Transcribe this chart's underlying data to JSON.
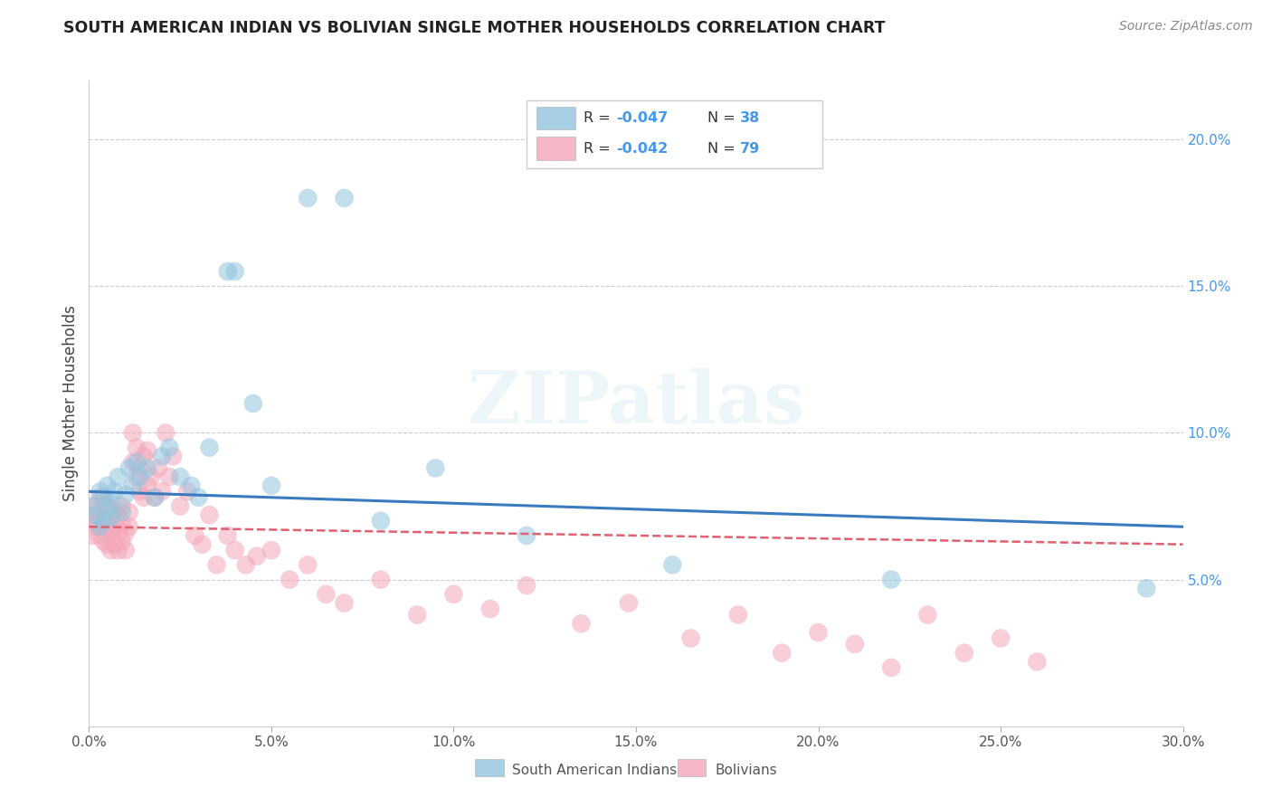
{
  "title": "SOUTH AMERICAN INDIAN VS BOLIVIAN SINGLE MOTHER HOUSEHOLDS CORRELATION CHART",
  "source": "Source: ZipAtlas.com",
  "ylabel": "Single Mother Households",
  "xlim": [
    0.0,
    0.3
  ],
  "ylim": [
    0.0,
    0.22
  ],
  "xticks": [
    0.0,
    0.05,
    0.1,
    0.15,
    0.2,
    0.25,
    0.3
  ],
  "yticks": [
    0.05,
    0.1,
    0.15,
    0.2
  ],
  "xticklabels": [
    "0.0%",
    "5.0%",
    "10.0%",
    "15.0%",
    "20.0%",
    "25.0%",
    "30.0%"
  ],
  "yticklabels": [
    "5.0%",
    "10.0%",
    "15.0%",
    "20.0%"
  ],
  "blue_color": "#92c5de",
  "pink_color": "#f4a6b8",
  "blue_line_color": "#3a7bbf",
  "pink_line_color": "#e06070",
  "text_color_blue": "#4499ee",
  "text_color_dark": "#333333",
  "watermark_text": "ZIPatlas",
  "blue_label": "South American Indians",
  "pink_label": "Bolivians",
  "legend_r1": "-0.047",
  "legend_n1": "38",
  "legend_r2": "-0.042",
  "legend_n2": "79",
  "blue_scatter_x": [
    0.001,
    0.002,
    0.003,
    0.003,
    0.004,
    0.004,
    0.005,
    0.005,
    0.006,
    0.006,
    0.007,
    0.008,
    0.009,
    0.01,
    0.011,
    0.012,
    0.013,
    0.014,
    0.016,
    0.018,
    0.02,
    0.022,
    0.025,
    0.028,
    0.03,
    0.033,
    0.038,
    0.04,
    0.045,
    0.05,
    0.06,
    0.07,
    0.08,
    0.095,
    0.12,
    0.16,
    0.22,
    0.29
  ],
  "blue_scatter_y": [
    0.075,
    0.072,
    0.068,
    0.08,
    0.07,
    0.078,
    0.074,
    0.082,
    0.071,
    0.076,
    0.08,
    0.085,
    0.073,
    0.079,
    0.088,
    0.082,
    0.09,
    0.085,
    0.088,
    0.078,
    0.092,
    0.095,
    0.085,
    0.082,
    0.078,
    0.095,
    0.155,
    0.155,
    0.11,
    0.082,
    0.18,
    0.18,
    0.07,
    0.088,
    0.065,
    0.055,
    0.05,
    0.047
  ],
  "pink_scatter_x": [
    0.001,
    0.001,
    0.002,
    0.002,
    0.002,
    0.003,
    0.003,
    0.003,
    0.004,
    0.004,
    0.004,
    0.005,
    0.005,
    0.005,
    0.006,
    0.006,
    0.006,
    0.007,
    0.007,
    0.007,
    0.008,
    0.008,
    0.008,
    0.009,
    0.009,
    0.009,
    0.01,
    0.01,
    0.011,
    0.011,
    0.012,
    0.012,
    0.013,
    0.013,
    0.014,
    0.014,
    0.015,
    0.015,
    0.016,
    0.016,
    0.017,
    0.018,
    0.019,
    0.02,
    0.021,
    0.022,
    0.023,
    0.025,
    0.027,
    0.029,
    0.031,
    0.033,
    0.035,
    0.038,
    0.04,
    0.043,
    0.046,
    0.05,
    0.055,
    0.06,
    0.065,
    0.07,
    0.08,
    0.09,
    0.1,
    0.11,
    0.12,
    0.135,
    0.148,
    0.165,
    0.178,
    0.19,
    0.2,
    0.21,
    0.22,
    0.23,
    0.24,
    0.25,
    0.26
  ],
  "pink_scatter_y": [
    0.065,
    0.072,
    0.07,
    0.075,
    0.068,
    0.065,
    0.072,
    0.078,
    0.063,
    0.07,
    0.076,
    0.062,
    0.068,
    0.075,
    0.06,
    0.067,
    0.073,
    0.062,
    0.068,
    0.074,
    0.06,
    0.066,
    0.072,
    0.063,
    0.069,
    0.075,
    0.06,
    0.066,
    0.073,
    0.068,
    0.1,
    0.09,
    0.095,
    0.085,
    0.088,
    0.08,
    0.092,
    0.078,
    0.082,
    0.094,
    0.085,
    0.078,
    0.088,
    0.08,
    0.1,
    0.085,
    0.092,
    0.075,
    0.08,
    0.065,
    0.062,
    0.072,
    0.055,
    0.065,
    0.06,
    0.055,
    0.058,
    0.06,
    0.05,
    0.055,
    0.045,
    0.042,
    0.05,
    0.038,
    0.045,
    0.04,
    0.048,
    0.035,
    0.042,
    0.03,
    0.038,
    0.025,
    0.032,
    0.028,
    0.02,
    0.038,
    0.025,
    0.03,
    0.022
  ],
  "background_color": "#ffffff",
  "grid_color": "#cccccc"
}
